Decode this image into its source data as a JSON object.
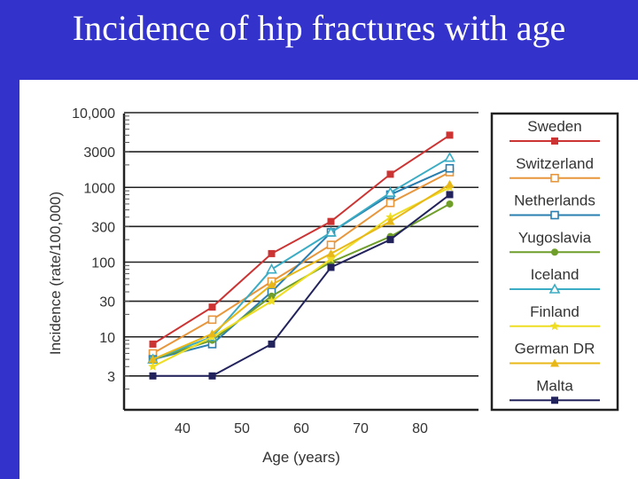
{
  "slide": {
    "title": "Incidence of hip fractures with age"
  },
  "colors": {
    "background": "#3333cc",
    "panel": "#ffffff",
    "grid": "#222222"
  },
  "chart_data": {
    "type": "line",
    "xlabel": "Age (years)",
    "ylabel": "Incidence (rate/100,000)",
    "y_scale": "log",
    "xlim": [
      30,
      90
    ],
    "ylim": [
      1,
      10000
    ],
    "x_ticks": [
      40,
      50,
      60,
      70,
      80
    ],
    "x_tick_labels": [
      "40",
      "50",
      "60",
      "70",
      "80"
    ],
    "y_ticks": [
      10000,
      3000,
      1000,
      300,
      100,
      30,
      10,
      3
    ],
    "y_tick_labels": [
      "10,000",
      "3000",
      "1000",
      "300",
      "100",
      "30",
      "10",
      "3"
    ],
    "grid": true,
    "legend_position": "right",
    "x": [
      35,
      45,
      55,
      65,
      75,
      85
    ],
    "series": [
      {
        "name": "Sweden",
        "color": "#cc3333",
        "marker": "square-filled",
        "values": [
          8,
          25,
          130,
          350,
          1500,
          5000
        ]
      },
      {
        "name": "Switzerland",
        "color": "#e8963c",
        "marker": "square-open",
        "values": [
          6,
          17,
          55,
          170,
          620,
          1600
        ]
      },
      {
        "name": "Netherlands",
        "color": "#2a7fb0",
        "marker": "square-open",
        "values": [
          5,
          8,
          40,
          250,
          800,
          1800
        ]
      },
      {
        "name": "Yugoslavia",
        "color": "#6f9e2a",
        "marker": "circle-filled",
        "values": [
          5,
          9,
          35,
          100,
          220,
          600
        ]
      },
      {
        "name": "Iceland",
        "color": "#3aacc4",
        "marker": "triangle-open",
        "values": [
          5,
          10,
          80,
          250,
          850,
          2500
        ]
      },
      {
        "name": "Finland",
        "color": "#eedd22",
        "marker": "star",
        "values": [
          4,
          10,
          30,
          110,
          400,
          1000
        ]
      },
      {
        "name": "German DR",
        "color": "#e8b818",
        "marker": "triangle-filled",
        "values": [
          5,
          11,
          50,
          130,
          350,
          1100
        ]
      },
      {
        "name": "Malta",
        "color": "#22225c",
        "marker": "square-filled",
        "values": [
          3,
          3,
          8,
          85,
          200,
          800
        ]
      }
    ]
  }
}
